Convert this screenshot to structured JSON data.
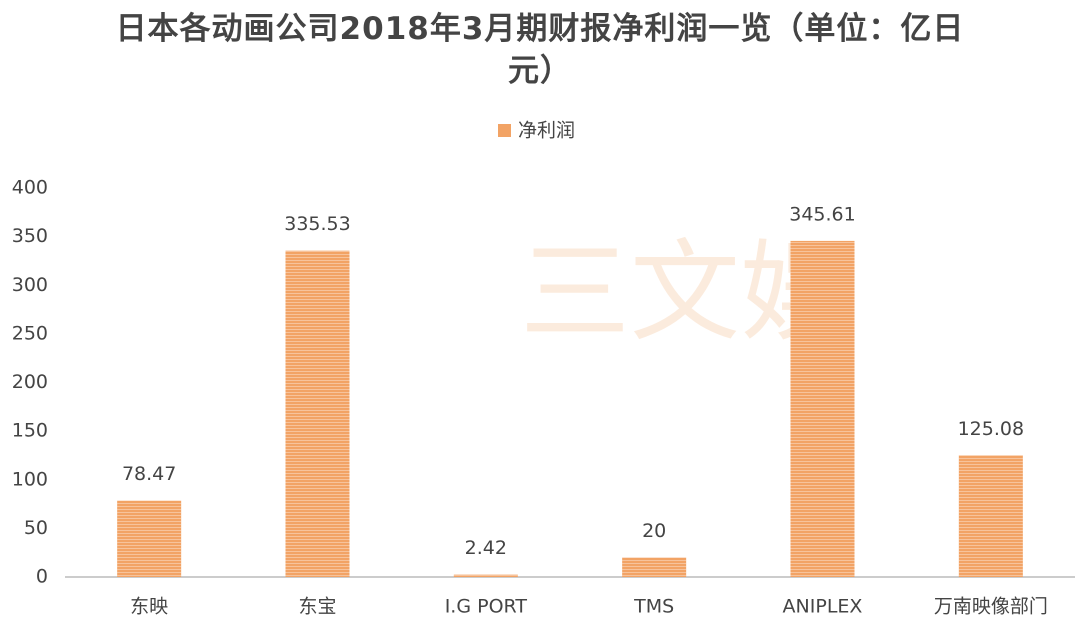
{
  "chart_data": {
    "type": "bar",
    "title": "日本各动画公司2018年3月期财报净利润一览（单位：亿日元）",
    "watermark": "三文娱",
    "categories": [
      "东映",
      "东宝",
      "I.G PORT",
      "TMS",
      "ANIPLEX",
      "万南映像部门"
    ],
    "series": [
      {
        "name": "净利润",
        "color": "#f2a365",
        "values": [
          78.47,
          335.53,
          2.42,
          20,
          345.61,
          125.08
        ]
      }
    ],
    "ylim": [
      0,
      400
    ],
    "yticks": [
      0,
      50,
      100,
      150,
      200,
      250,
      300,
      350,
      400
    ],
    "grid": false,
    "legend": "top"
  }
}
